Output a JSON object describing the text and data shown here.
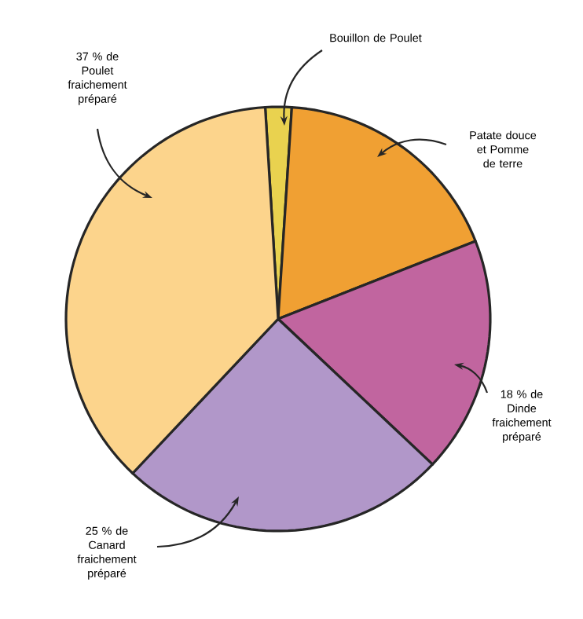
{
  "chart_data": {
    "type": "pie",
    "categories": [
      "Bouillon de Poulet",
      "Patate douce et Pomme de terre",
      "18 % de Dinde fraichement préparé",
      "25 % de Canard fraichement préparé",
      "37 % de Poulet fraichement préparé"
    ],
    "values": [
      2,
      18,
      18,
      25,
      37
    ],
    "colors": [
      "#e9d24f",
      "#f0a033",
      "#c1659f",
      "#b197c9",
      "#fcd48c"
    ]
  }
}
